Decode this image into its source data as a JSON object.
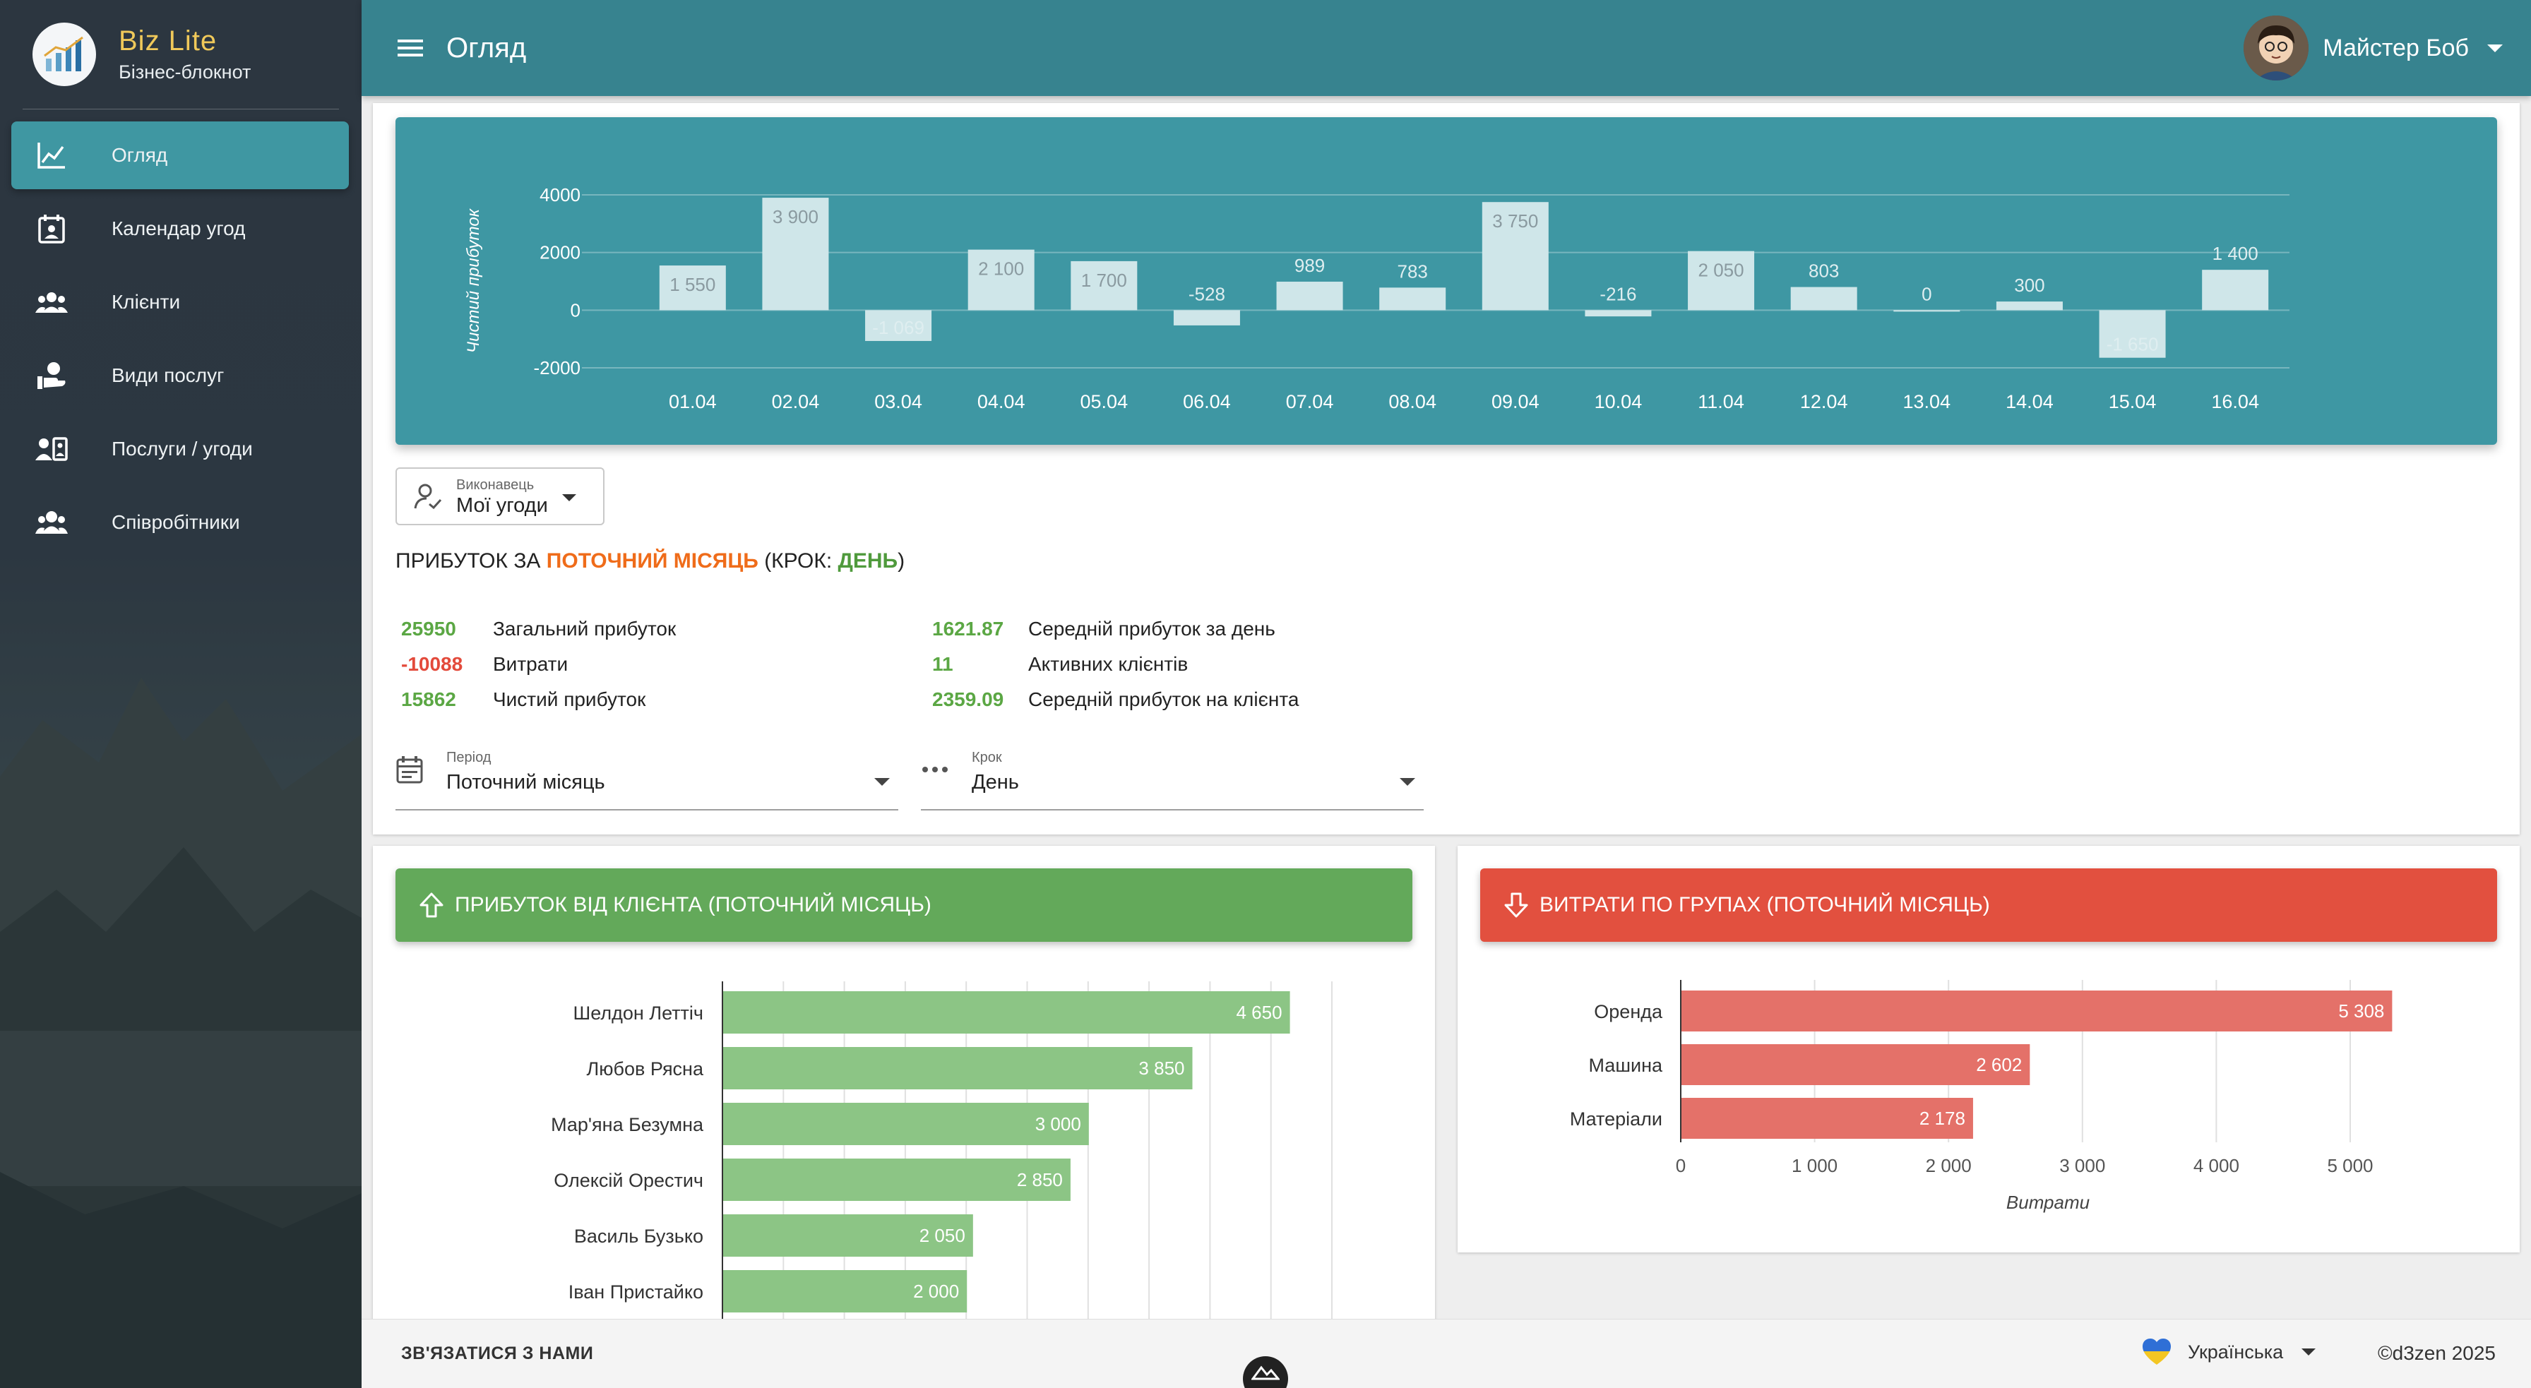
{
  "app": {
    "name": "Biz Lite",
    "subtitle": "Бізнес-блокнот"
  },
  "sidebar": {
    "items": [
      {
        "label": "Огляд",
        "icon": "chart-line-icon",
        "active": true
      },
      {
        "label": "Календар угод",
        "icon": "calendar-account-icon",
        "active": false
      },
      {
        "label": "Клієнти",
        "icon": "account-group-icon",
        "active": false
      },
      {
        "label": "Види послуг",
        "icon": "hand-heart-icon",
        "active": false
      },
      {
        "label": "Послуги / угоди",
        "icon": "account-box-icon",
        "active": false
      },
      {
        "label": "Співробітники",
        "icon": "account-multiple-icon",
        "active": false
      }
    ]
  },
  "header": {
    "title": "Огляд",
    "user_name": "Майстер Боб"
  },
  "daily_chart": {
    "type": "bar",
    "ylabel": "Чистий прибуток",
    "ylim": [
      -2000,
      4000
    ],
    "yticks": [
      "4000",
      "2000",
      "0",
      "-2000"
    ],
    "ytick_values": [
      4000,
      2000,
      0,
      -2000
    ],
    "categories": [
      "01.04",
      "02.04",
      "03.04",
      "04.04",
      "05.04",
      "06.04",
      "07.04",
      "08.04",
      "09.04",
      "10.04",
      "11.04",
      "12.04",
      "13.04",
      "14.04",
      "15.04",
      "16.04"
    ],
    "values": [
      1550,
      3900,
      -1069,
      2100,
      1700,
      -528,
      989,
      783,
      3750,
      -216,
      2050,
      803,
      0,
      300,
      -1650,
      1400
    ],
    "labels": [
      "1 550",
      "3 900",
      "-1 069",
      "2 100",
      "1 700",
      "-528",
      "989",
      "783",
      "3 750",
      "-216",
      "2 050",
      "803",
      "0",
      "300",
      "-1 650",
      "1 400"
    ]
  },
  "executor": {
    "label": "Виконавець",
    "value": "Мої угоди"
  },
  "profit_title": {
    "prefix": "ПРИБУТОК ЗА",
    "period": "ПОТОЧНИЙ МІСЯЦЬ",
    "step_prefix": "(КРОК:",
    "step": "ДЕНЬ",
    "suffix": ")"
  },
  "stats_left": [
    {
      "value": "25950",
      "label": "Загальний прибуток"
    },
    {
      "value": "-10088",
      "label": "Витрати"
    },
    {
      "value": "15862",
      "label": "Чистий прибуток"
    }
  ],
  "stats_right": [
    {
      "value": "1621.87",
      "label": "Середній прибуток за день"
    },
    {
      "value": "11",
      "label": "Активних клієнтів"
    },
    {
      "value": "2359.09",
      "label": "Середній прибуток на клієнта"
    }
  ],
  "period_field": {
    "label": "Період",
    "value": "Поточний місяць"
  },
  "step_field": {
    "label": "Крок",
    "value": "День"
  },
  "client_card": {
    "title": "ПРИБУТОК ВІД КЛІЄНТА (ПОТОЧНИЙ МІСЯЦЬ)"
  },
  "expense_card": {
    "title": "ВИТРАТИ ПО ГРУПАХ (ПОТОЧНИЙ МІСЯЦЬ)"
  },
  "chart_data": [
    {
      "type": "bar",
      "title": "Чистий прибуток",
      "categories": [
        "01.04",
        "02.04",
        "03.04",
        "04.04",
        "05.04",
        "06.04",
        "07.04",
        "08.04",
        "09.04",
        "10.04",
        "11.04",
        "12.04",
        "13.04",
        "14.04",
        "15.04",
        "16.04"
      ],
      "values": [
        1550,
        3900,
        -1069,
        2100,
        1700,
        -528,
        989,
        783,
        3750,
        -216,
        2050,
        803,
        0,
        300,
        -1650,
        1400
      ],
      "ylabel": "Чистий прибуток",
      "ylim": [
        -2000,
        4000
      ]
    },
    {
      "type": "bar",
      "orientation": "horizontal",
      "title": "ПРИБУТОК ВІД КЛІЄНТА (ПОТОЧНИЙ МІСЯЦЬ)",
      "categories": [
        "Шелдон Леттіч",
        "Любов Рясна",
        "Мар'яна Безумна",
        "Олексій Орестич",
        "Василь Бузько",
        "Іван Пристайко"
      ],
      "values": [
        4650,
        3850,
        3000,
        2850,
        2050,
        2000
      ],
      "labels": [
        "4 650",
        "3 850",
        "3 000",
        "2 850",
        "2 050",
        "2 000"
      ],
      "xlim": [
        0,
        5000
      ]
    },
    {
      "type": "bar",
      "orientation": "horizontal",
      "title": "ВИТРАТИ ПО ГРУПАХ (ПОТОЧНИЙ МІСЯЦЬ)",
      "categories": [
        "Оренда",
        "Машина",
        "Матеріали"
      ],
      "values": [
        5308,
        2602,
        2178
      ],
      "labels": [
        "5 308",
        "2 602",
        "2 178"
      ],
      "xticks": [
        "0",
        "1 000",
        "2 000",
        "3 000",
        "4 000",
        "5 000"
      ],
      "xtick_values": [
        0,
        1000,
        2000,
        3000,
        4000,
        5000
      ],
      "xlabel": "Витрати",
      "xlim": [
        0,
        5500
      ]
    }
  ],
  "footer": {
    "contact": "ЗВ'ЯЗАТИСЯ З НАМИ",
    "language": "Українська",
    "copyright": "©d3zen 2025"
  },
  "colors": {
    "header": "#37838f",
    "chart_bg": "#3e97a3",
    "profit_green": "#63a95a",
    "expense_red": "#e2503f",
    "accent_orange": "#ef6c1a"
  }
}
